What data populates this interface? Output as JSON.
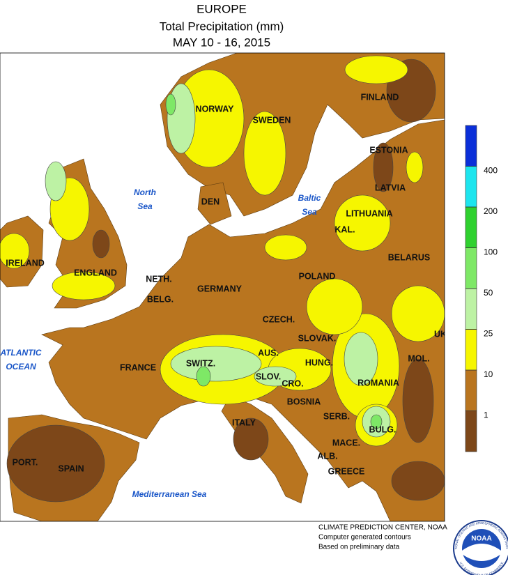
{
  "header": {
    "title": "EUROPE",
    "subtitle": "Total Precipitation (mm)",
    "dates": "MAY 10 - 16, 2015"
  },
  "countries": [
    "NORWAY",
    "SWEDEN",
    "FINLAND",
    "ESTONIA",
    "LATVIA",
    "LITHUANIA",
    "KAL.",
    "DEN",
    "BELARUS",
    "POLAND",
    "GERMANY",
    "NETH.",
    "BELG.",
    "ENGLAND",
    "IRELAND",
    "CZECH.",
    "SLOVAK.",
    "UK",
    "FRANCE",
    "SWITZ.",
    "AUS.",
    "HUNG.",
    "SLOV.",
    "CRO.",
    "ROMANIA",
    "MOL.",
    "BOSNIA",
    "SERB.",
    "BULG.",
    "MACE.",
    "ALB.",
    "GREECE",
    "ITALY",
    "PORT.",
    "SPAIN"
  ],
  "seas": [
    {
      "lines": [
        "North",
        "Sea"
      ]
    },
    {
      "lines": [
        "Baltic",
        "Sea"
      ]
    },
    {
      "lines": [
        "ATLANTIC",
        "OCEAN"
      ]
    },
    {
      "lines": [
        "Mediterranean Sea"
      ]
    }
  ],
  "legend": {
    "ticks": [
      1,
      10,
      25,
      50,
      100,
      200,
      400
    ],
    "colors": [
      "#7d4719",
      "#b9751f",
      "#f6f600",
      "#bdf2a4",
      "#7ee866",
      "#2fd12f",
      "#1de5ee",
      "#0b2fd8"
    ]
  },
  "credits": [
    "CLIMATE PREDICTION CENTER, NOAA",
    "Computer generated contours",
    "Based on preliminary data"
  ],
  "logo": {
    "name": "NOAA",
    "ring_top": "NATIONAL OCEANIC AND ATMOSPHERIC ADMINISTRATION",
    "ring_bottom": "U.S. DEPARTMENT OF COMMERCE"
  }
}
